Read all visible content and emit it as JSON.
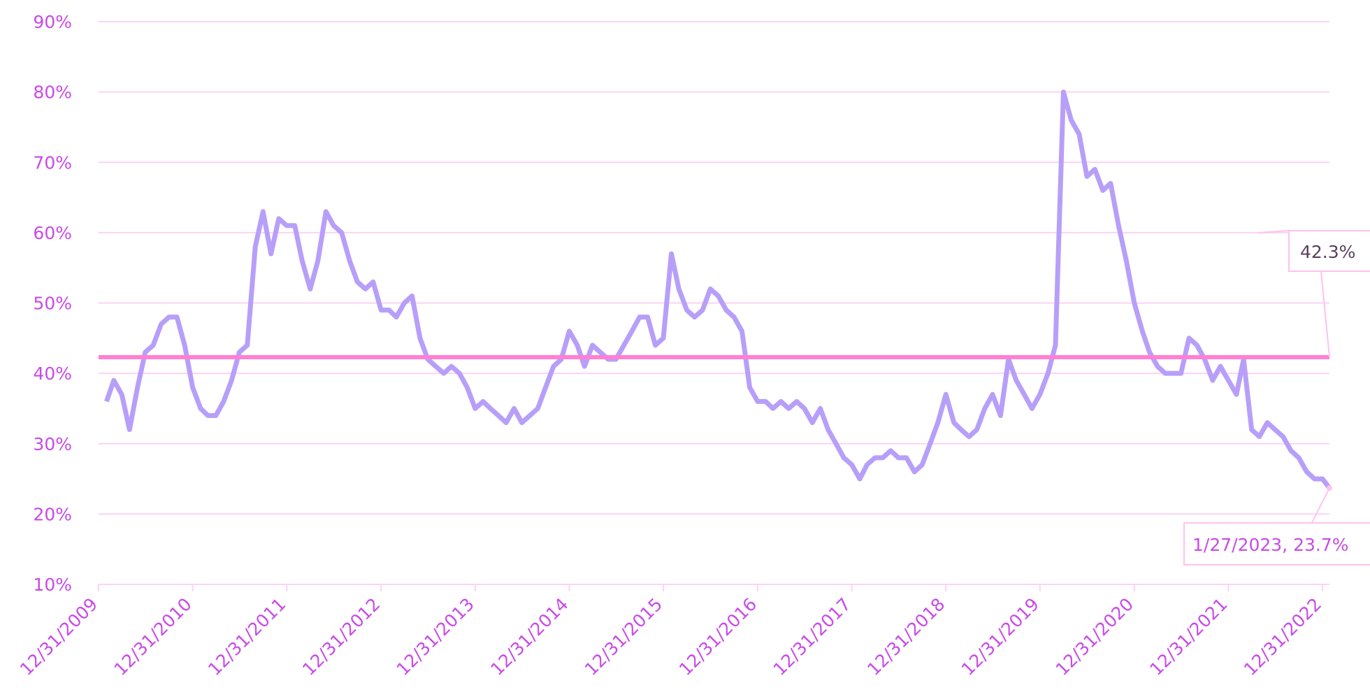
{
  "chart_data": {
    "type": "line",
    "x": [
      "1/31/2010",
      "2/28/2010",
      "3/31/2010",
      "4/30/2010",
      "5/31/2010",
      "6/30/2010",
      "7/31/2010",
      "8/31/2010",
      "9/30/2010",
      "10/31/2010",
      "11/30/2010",
      "12/31/2010",
      "1/31/2011",
      "2/28/2011",
      "3/31/2011",
      "4/30/2011",
      "5/31/2011",
      "6/30/2011",
      "7/31/2011",
      "8/31/2011",
      "9/30/2011",
      "10/31/2011",
      "11/30/2011",
      "12/31/2011",
      "1/31/2012",
      "2/29/2012",
      "3/31/2012",
      "4/30/2012",
      "5/31/2012",
      "6/30/2012",
      "7/31/2012",
      "8/31/2012",
      "9/30/2012",
      "10/31/2012",
      "11/30/2012",
      "12/31/2012",
      "1/31/2013",
      "2/28/2013",
      "3/31/2013",
      "4/30/2013",
      "5/31/2013",
      "6/30/2013",
      "7/31/2013",
      "8/31/2013",
      "9/30/2013",
      "10/31/2013",
      "11/30/2013",
      "12/31/2013",
      "1/31/2014",
      "2/28/2014",
      "3/31/2014",
      "4/30/2014",
      "5/31/2014",
      "6/30/2014",
      "7/31/2014",
      "8/31/2014",
      "9/30/2014",
      "10/31/2014",
      "11/30/2014",
      "12/31/2014",
      "1/31/2015",
      "2/28/2015",
      "3/31/2015",
      "4/30/2015",
      "5/31/2015",
      "6/30/2015",
      "7/31/2015",
      "8/31/2015",
      "9/30/2015",
      "10/31/2015",
      "11/30/2015",
      "12/31/2015",
      "1/31/2016",
      "2/29/2016",
      "3/31/2016",
      "4/30/2016",
      "5/31/2016",
      "6/30/2016",
      "7/31/2016",
      "8/31/2016",
      "9/30/2016",
      "10/31/2016",
      "11/30/2016",
      "12/31/2016",
      "1/31/2017",
      "2/28/2017",
      "3/31/2017",
      "4/30/2017",
      "5/31/2017",
      "6/30/2017",
      "7/31/2017",
      "8/31/2017",
      "9/30/2017",
      "10/31/2017",
      "11/30/2017",
      "12/31/2017",
      "1/31/2018",
      "2/28/2018",
      "3/31/2018",
      "4/30/2018",
      "5/31/2018",
      "6/30/2018",
      "7/31/2018",
      "8/31/2018",
      "9/30/2018",
      "10/31/2018",
      "11/30/2018",
      "12/31/2018",
      "1/31/2019",
      "2/28/2019",
      "3/31/2019",
      "4/30/2019",
      "5/31/2019",
      "6/30/2019",
      "7/31/2019",
      "8/31/2019",
      "9/30/2019",
      "10/31/2019",
      "11/30/2019",
      "12/31/2019",
      "1/31/2020",
      "2/29/2020",
      "3/31/2020",
      "4/30/2020",
      "5/31/2020",
      "6/30/2020",
      "7/31/2020",
      "8/31/2020",
      "9/30/2020",
      "10/31/2020",
      "11/30/2020",
      "12/31/2020",
      "1/31/2021",
      "2/28/2021",
      "3/31/2021",
      "4/30/2021",
      "5/31/2021",
      "6/30/2021",
      "7/31/2021",
      "8/31/2021",
      "9/30/2021",
      "10/31/2021",
      "11/30/2021",
      "12/31/2021",
      "1/31/2022",
      "2/28/2022",
      "3/31/2022",
      "4/30/2022",
      "5/31/2022",
      "6/30/2022",
      "7/31/2022",
      "8/31/2022",
      "9/30/2022",
      "10/31/2022",
      "11/30/2022",
      "12/31/2022",
      "1/27/2023"
    ],
    "series": [
      {
        "color": "#b79ff9",
        "values": [
          36,
          39,
          37,
          32,
          38,
          43,
          44,
          47,
          48,
          48,
          44,
          38,
          35,
          34,
          34,
          36,
          39,
          43,
          44,
          58,
          63,
          57,
          62,
          61,
          61,
          56,
          52,
          56,
          63,
          61,
          60,
          56,
          53,
          52,
          53,
          49,
          49,
          48,
          50,
          51,
          45,
          42,
          41,
          40,
          41,
          40,
          38,
          35,
          36,
          35,
          34,
          33,
          35,
          33,
          34,
          35,
          38,
          41,
          42,
          46,
          44,
          41,
          44,
          43,
          42,
          42,
          44,
          46,
          48,
          48,
          44,
          45,
          57,
          52,
          49,
          48,
          49,
          52,
          51,
          49,
          48,
          46,
          38,
          36,
          36,
          35,
          36,
          35,
          36,
          35,
          33,
          35,
          32,
          30,
          28,
          27,
          25,
          27,
          28,
          28,
          29,
          28,
          28,
          26,
          27,
          30,
          33,
          37,
          33,
          32,
          31,
          32,
          35,
          37,
          34,
          42,
          39,
          37,
          35,
          37,
          40,
          44,
          80,
          76,
          74,
          68,
          69,
          66,
          67,
          61,
          56,
          50,
          46,
          43,
          41,
          40,
          40,
          40,
          45,
          44,
          42,
          39,
          41,
          39,
          37,
          42,
          32,
          31,
          33,
          32,
          31,
          29,
          28,
          26,
          25,
          25,
          23.7
        ]
      }
    ],
    "xlim": [
      "12/31/2009",
      "1/27/2023"
    ],
    "xticks": [
      "12/31/2009",
      "12/31/2010",
      "12/31/2011",
      "12/31/2012",
      "12/31/2013",
      "12/31/2014",
      "12/31/2015",
      "12/31/2016",
      "12/31/2017",
      "12/31/2018",
      "12/31/2019",
      "12/31/2020",
      "12/31/2021",
      "12/31/2022"
    ],
    "ylim": [
      10,
      90
    ],
    "yticks": [
      {
        "value": 10,
        "label": "10%"
      },
      {
        "value": 20,
        "label": "20%"
      },
      {
        "value": 30,
        "label": "30%"
      },
      {
        "value": 40,
        "label": "40%"
      },
      {
        "value": 50,
        "label": "50%"
      },
      {
        "value": 60,
        "label": "60%"
      },
      {
        "value": 70,
        "label": "70%"
      },
      {
        "value": 80,
        "label": "80%"
      },
      {
        "value": 90,
        "label": "90%"
      }
    ],
    "grid": true,
    "mean_line": {
      "value": 42.3,
      "label": "42.3%",
      "color": "#ff80d5"
    },
    "last_point": {
      "x": "1/27/2023",
      "value": 23.7,
      "label": "1/27/2023, 23.7%"
    }
  }
}
